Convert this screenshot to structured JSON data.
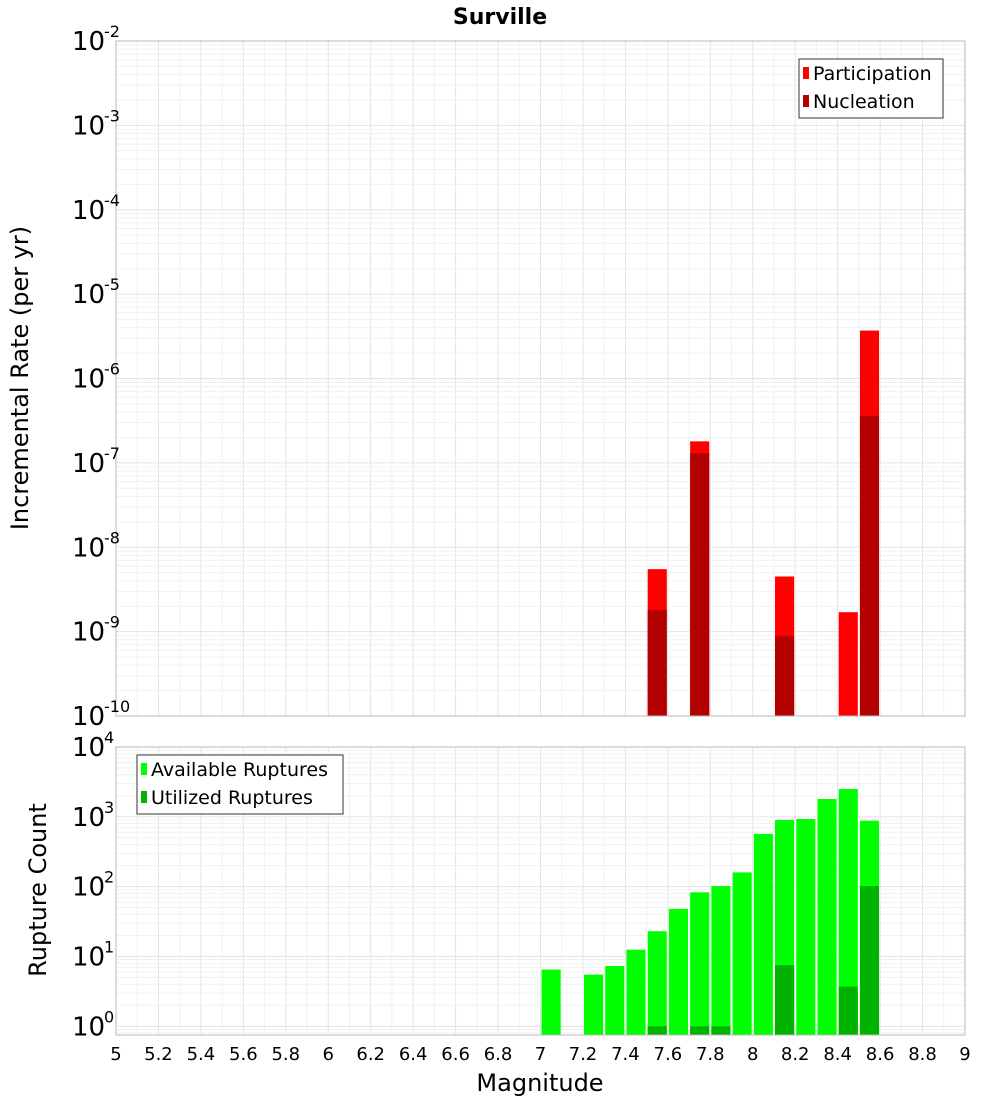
{
  "chart_data": [
    {
      "type": "bar",
      "title": "Surville",
      "xlabel": "",
      "ylabel": "Incremental Rate (per yr)",
      "yscale": "log",
      "ylim": [
        1e-10,
        0.01
      ],
      "xlim": [
        5,
        9
      ],
      "ytick_exponents": [
        "-10",
        "-9",
        "-8",
        "-7",
        "-6",
        "-5",
        "-4",
        "-3",
        "-2"
      ],
      "legend_position": "top-right",
      "grid": true,
      "bar_width": 0.09,
      "colors": {
        "Participation": "#ff0000",
        "Nucleation": "#b30000"
      },
      "series": [
        {
          "name": "Participation",
          "x": [
            7.55,
            7.75,
            8.15,
            8.45,
            8.55
          ],
          "values": [
            5.5e-09,
            1.8e-07,
            4.5e-09,
            1.7e-09,
            3.7e-06
          ]
        },
        {
          "name": "Nucleation",
          "x": [
            7.55,
            7.75,
            8.15,
            8.55
          ],
          "values": [
            1.8e-09,
            1.3e-07,
            8.8e-10,
            3.6e-07
          ]
        }
      ]
    },
    {
      "type": "bar",
      "title": "",
      "xlabel": "Magnitude",
      "ylabel": "Rupture Count",
      "yscale": "log",
      "ylim": [
        0.75,
        10000
      ],
      "xlim": [
        5,
        9
      ],
      "ytick_exponents": [
        "0",
        "1",
        "2",
        "3",
        "4"
      ],
      "xticks": [
        "5",
        "5.2",
        "5.4",
        "5.6",
        "5.8",
        "6",
        "6.2",
        "6.4",
        "6.6",
        "6.8",
        "7",
        "7.2",
        "7.4",
        "7.6",
        "7.8",
        "8",
        "8.2",
        "8.4",
        "8.6",
        "8.8",
        "9"
      ],
      "legend_position": "top-left",
      "grid": true,
      "bar_width": 0.09,
      "colors": {
        "Available Ruptures": "#00ff00",
        "Utilized Ruptures": "#00b300"
      },
      "series": [
        {
          "name": "Available Ruptures",
          "x": [
            7.05,
            7.25,
            7.35,
            7.45,
            7.55,
            7.65,
            7.75,
            7.85,
            7.95,
            8.05,
            8.15,
            8.25,
            8.35,
            8.45,
            8.55
          ],
          "values": [
            6.5,
            5.5,
            7.3,
            12.5,
            23,
            48,
            83,
            102,
            160,
            570,
            900,
            930,
            1800,
            2500,
            880
          ]
        },
        {
          "name": "Utilized Ruptures",
          "x": [
            7.55,
            7.75,
            7.85,
            8.15,
            8.45,
            8.55
          ],
          "values": [
            1,
            1,
            1,
            7.5,
            3.7,
            102
          ]
        }
      ]
    }
  ]
}
